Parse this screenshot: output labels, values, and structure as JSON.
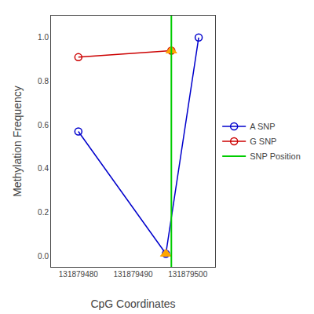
{
  "chart_data": {
    "type": "line",
    "xlabel": "CpG Coordinates",
    "ylabel": "Methylation Frequency",
    "series": [
      {
        "name": "A SNP",
        "color": "#0000CC",
        "marker": "circle-open",
        "x": [
          131879480,
          131879496,
          131879502
        ],
        "values": [
          0.57,
          0.01,
          1.0
        ]
      },
      {
        "name": "G SNP",
        "color": "#CC0000",
        "marker": "circle-open",
        "x": [
          131879480,
          131879497
        ],
        "values": [
          0.91,
          0.94
        ]
      },
      {
        "type": "scatter",
        "marker": "triangle-up",
        "color": "#FFA500",
        "x": [
          131879496,
          131879497
        ],
        "values": [
          0.01,
          0.94
        ]
      },
      {
        "name": "SNP Position",
        "type": "vline",
        "color": "#00CC00",
        "x": [
          131879497
        ]
      }
    ],
    "xlim": [
      131879475,
      131879505
    ],
    "xticks": [
      131879480,
      131879490,
      131879500
    ],
    "ylim": [
      -0.05,
      1.1
    ],
    "yticks": [
      {
        "value": 0.0,
        "label": "0.0"
      },
      0.2,
      0.4,
      0.6,
      0.8,
      {
        "value": 1.0,
        "label": "1.0"
      }
    ],
    "grid": false,
    "legend": "right"
  }
}
